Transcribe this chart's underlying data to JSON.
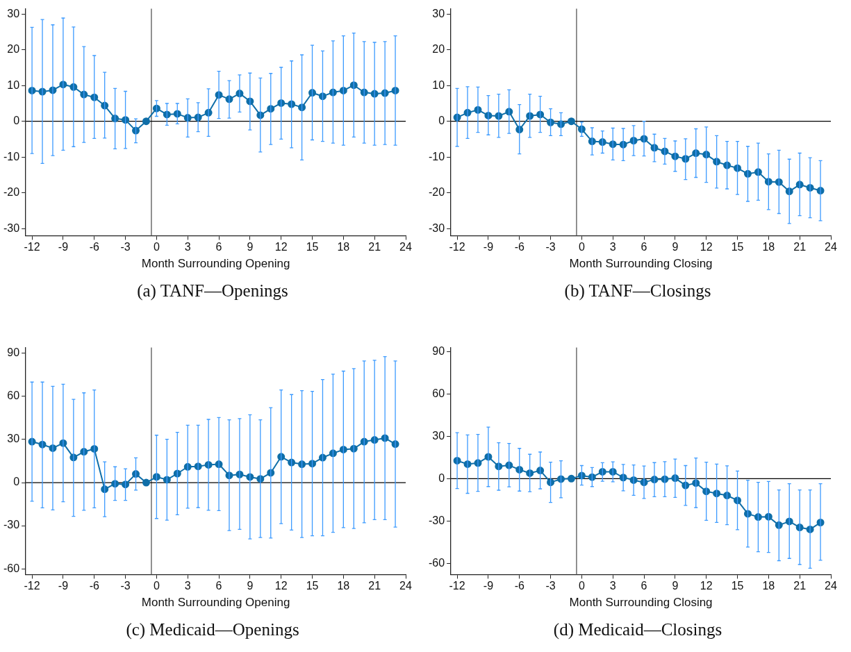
{
  "chart_data": [
    {
      "type": "line",
      "title": "(a) TANF—Openings",
      "xlabel": "Month Surrounding Opening",
      "marker": "circle",
      "x": [
        -12,
        -11,
        -10,
        -9,
        -8,
        -7,
        -6,
        -5,
        -4,
        -3,
        -2,
        -1,
        0,
        1,
        2,
        3,
        4,
        5,
        6,
        7,
        8,
        9,
        10,
        11,
        12,
        13,
        14,
        15,
        16,
        17,
        18,
        19,
        20,
        21,
        22,
        23
      ],
      "series": [
        {
          "color": "#0f6ea8",
          "values": [
            8.6,
            8.3,
            8.7,
            10.3,
            9.6,
            7.5,
            6.7,
            4.4,
            0.8,
            0.4,
            -2.6,
            0,
            3.6,
            1.9,
            2.1,
            1.0,
            1.1,
            2.4,
            7.4,
            6.2,
            7.8,
            5.6,
            1.7,
            3.5,
            5.1,
            4.8,
            3.9,
            8.0,
            7.0,
            8.1,
            8.6,
            10.1,
            8.1,
            7.7,
            7.9,
            8.6
          ],
          "errors": [
            [
              -9,
              26.3
            ],
            [
              -11.8,
              28.5
            ],
            [
              -9.6,
              27
            ],
            [
              -8.1,
              28.9
            ],
            [
              -7.1,
              26.4
            ],
            [
              -5.9,
              20.9
            ],
            [
              -4.8,
              18.4
            ],
            [
              -4.7,
              13.7
            ],
            [
              -7.7,
              9.2
            ],
            [
              -7.6,
              8.4
            ],
            [
              -6,
              0.7
            ],
            null,
            [
              1.4,
              5.8
            ],
            [
              -1.1,
              5
            ],
            [
              -0.7,
              5
            ],
            [
              -4.4,
              6.3
            ],
            [
              -2.9,
              5.2
            ],
            [
              -4.2,
              9.1
            ],
            [
              0.8,
              14
            ],
            [
              0.9,
              11.4
            ],
            [
              2.6,
              13
            ],
            [
              -2.4,
              13.5
            ],
            [
              -8.6,
              12.1
            ],
            [
              -6.5,
              13.4
            ],
            [
              -5,
              15.1
            ],
            [
              -7.4,
              16.9
            ],
            [
              -10.8,
              18.6
            ],
            [
              -5.2,
              21.3
            ],
            [
              -5.6,
              19.7
            ],
            [
              -6.1,
              22.5
            ],
            [
              -6.7,
              23.9
            ],
            [
              -4.4,
              24.7
            ],
            [
              -6.1,
              22.3
            ],
            [
              -6.7,
              22.1
            ],
            [
              -6.5,
              22.3
            ],
            [
              -6.7,
              23.9
            ]
          ]
        }
      ],
      "xlim": [
        -12.6,
        24
      ],
      "xticks": [
        -12,
        -9,
        -6,
        -3,
        0,
        3,
        6,
        9,
        12,
        15,
        18,
        21,
        24
      ],
      "ylim": [
        -32,
        31.5
      ],
      "yticks": [
        -30,
        -20,
        -10,
        0,
        10,
        20,
        30
      ],
      "ref_lines": [
        {
          "axis": "x",
          "value": -0.5,
          "color": "#555555"
        },
        {
          "axis": "y",
          "value": 0,
          "color": "#000000"
        }
      ]
    },
    {
      "type": "line",
      "title": "(b) TANF—Closings",
      "xlabel": "Month Surrounding Closing",
      "marker": "circle",
      "x": [
        -12,
        -11,
        -10,
        -9,
        -8,
        -7,
        -6,
        -5,
        -4,
        -3,
        -2,
        -1,
        0,
        1,
        2,
        3,
        4,
        5,
        6,
        7,
        8,
        9,
        10,
        11,
        12,
        13,
        14,
        15,
        16,
        17,
        18,
        19,
        20,
        21,
        22,
        23
      ],
      "series": [
        {
          "color": "#0f6ea8",
          "values": [
            1.1,
            2.4,
            3.2,
            1.6,
            1.5,
            2.7,
            -2.3,
            1.5,
            1.9,
            -0.3,
            -0.8,
            0,
            -2.2,
            -5.6,
            -5.8,
            -6.4,
            -6.5,
            -5.4,
            -4.9,
            -7.4,
            -8.4,
            -9.8,
            -10.5,
            -8.9,
            -9.3,
            -11.3,
            -12.3,
            -13.1,
            -14.7,
            -14.2,
            -16.9,
            -17,
            -19.6,
            -17.7,
            -18.6,
            -19.4
          ],
          "errors": [
            [
              -7,
              9.2
            ],
            [
              -4.8,
              9.7
            ],
            [
              -3.1,
              9.6
            ],
            [
              -3.8,
              7.2
            ],
            [
              -4.5,
              7.6
            ],
            [
              -3.4,
              8.8
            ],
            [
              -9.1,
              4.7
            ],
            [
              -4.5,
              7.6
            ],
            [
              -3.1,
              7
            ],
            [
              -4,
              3.5
            ],
            [
              -4,
              2.4
            ],
            null,
            [
              -4.2,
              -0.2
            ],
            [
              -9.4,
              -1.8
            ],
            [
              -8.9,
              -2.7
            ],
            [
              -10.8,
              -1.9
            ],
            [
              -11,
              -2
            ],
            [
              -9.6,
              -1.2
            ],
            [
              -9.7,
              0
            ],
            [
              -11.3,
              -3.6
            ],
            [
              -12,
              -4.8
            ],
            [
              -14,
              -5.5
            ],
            [
              -16.3,
              -4.9
            ],
            [
              -15.7,
              -2.1
            ],
            [
              -17.1,
              -1.6
            ],
            [
              -18.7,
              -4
            ],
            [
              -18.9,
              -5.6
            ],
            [
              -20.5,
              -5.6
            ],
            [
              -22.4,
              -7
            ],
            [
              -22.1,
              -6.1
            ],
            [
              -24.7,
              -9.1
            ],
            [
              -25.8,
              -8.1
            ],
            [
              -28.6,
              -10.6
            ],
            [
              -26.4,
              -8.9
            ],
            [
              -27,
              -10.2
            ],
            [
              -27.8,
              -11
            ]
          ]
        }
      ],
      "xlim": [
        -12.6,
        24
      ],
      "xticks": [
        -12,
        -9,
        -6,
        -3,
        0,
        3,
        6,
        9,
        12,
        15,
        18,
        21,
        24
      ],
      "ylim": [
        -32,
        31.5
      ],
      "yticks": [
        -30,
        -20,
        -10,
        0,
        10,
        20,
        30
      ],
      "ref_lines": [
        {
          "axis": "x",
          "value": -0.5,
          "color": "#555555"
        },
        {
          "axis": "y",
          "value": 0,
          "color": "#000000"
        }
      ]
    },
    {
      "type": "line",
      "title": "(c) Medicaid—Openings",
      "xlabel": "Month Surrounding Opening",
      "marker": "circle",
      "x": [
        -12,
        -11,
        -10,
        -9,
        -8,
        -7,
        -6,
        -5,
        -4,
        -3,
        -2,
        -1,
        0,
        1,
        2,
        3,
        4,
        5,
        6,
        7,
        8,
        9,
        10,
        11,
        12,
        13,
        14,
        15,
        16,
        17,
        18,
        19,
        20,
        21,
        22,
        23
      ],
      "series": [
        {
          "color": "#0f6ea8",
          "values": [
            28.5,
            26.5,
            24,
            27.5,
            17.5,
            21.5,
            23.5,
            -4.6,
            -0.8,
            -1.3,
            6,
            0,
            4,
            2,
            6.3,
            11,
            11.3,
            12.4,
            12.8,
            5,
            5.7,
            3.9,
            2.6,
            6.8,
            18,
            14,
            12.8,
            13.2,
            17.4,
            20.4,
            23,
            23.6,
            28.5,
            29.7,
            31,
            26.8
          ],
          "errors": [
            [
              -13,
              70
            ],
            [
              -17.6,
              70
            ],
            [
              -19,
              67
            ],
            [
              -13.3,
              68.5
            ],
            [
              -23.5,
              58
            ],
            [
              -19.3,
              62.5
            ],
            [
              -17.6,
              64.5
            ],
            [
              -23.7,
              14.5
            ],
            [
              -12.4,
              11
            ],
            [
              -12.4,
              9.6
            ],
            [
              -5.2,
              17.2
            ],
            null,
            [
              -25,
              33
            ],
            [
              -26.2,
              30.2
            ],
            [
              -22.4,
              35
            ],
            [
              -17.8,
              40
            ],
            [
              -17.4,
              40
            ],
            [
              -19.3,
              44
            ],
            [
              -19.5,
              45.3
            ],
            [
              -33.4,
              43.7
            ],
            [
              -32.6,
              44.6
            ],
            [
              -39.2,
              47.2
            ],
            [
              -38.2,
              43.7
            ],
            [
              -38.6,
              52.2
            ],
            [
              -28.6,
              64.5
            ],
            [
              -33,
              61.3
            ],
            [
              -38.2,
              64
            ],
            [
              -37,
              63.5
            ],
            [
              -37,
              71.7
            ],
            [
              -34.6,
              75.5
            ],
            [
              -31.4,
              77.6
            ],
            [
              -32,
              79.4
            ],
            [
              -28,
              84.7
            ],
            [
              -25.8,
              85.2
            ],
            [
              -25.8,
              87.7
            ],
            [
              -31,
              84.7
            ]
          ]
        }
      ],
      "xlim": [
        -12.6,
        24
      ],
      "xticks": [
        -12,
        -9,
        -6,
        -3,
        0,
        3,
        6,
        9,
        12,
        15,
        18,
        21,
        24
      ],
      "ylim": [
        -64,
        94
      ],
      "yticks": [
        -60,
        -30,
        0,
        30,
        60,
        90
      ],
      "ref_lines": [
        {
          "axis": "x",
          "value": -0.5,
          "color": "#555555"
        },
        {
          "axis": "y",
          "value": 0,
          "color": "#000000"
        }
      ]
    },
    {
      "type": "line",
      "title": "(d) Medicaid—Closings",
      "xlabel": "Month Surrounding Closing",
      "marker": "circle",
      "x": [
        -12,
        -11,
        -10,
        -9,
        -8,
        -7,
        -6,
        -5,
        -4,
        -3,
        -2,
        -1,
        0,
        1,
        2,
        3,
        4,
        5,
        6,
        7,
        8,
        9,
        10,
        11,
        12,
        13,
        14,
        15,
        16,
        17,
        18,
        19,
        20,
        21,
        22,
        23
      ],
      "series": [
        {
          "color": "#0f6ea8",
          "values": [
            12.8,
            10.3,
            11.1,
            15.5,
            8.7,
            9.5,
            6.4,
            3.9,
            5.8,
            -2.6,
            -0.3,
            0,
            2.2,
            1.1,
            4.9,
            4.9,
            0.8,
            -1,
            -2.6,
            -0.6,
            -0.4,
            0.4,
            -4.8,
            -3.1,
            -9,
            -10.5,
            -11.9,
            -15.4,
            -24.9,
            -27.2,
            -27,
            -33,
            -30.3,
            -34.6,
            -36,
            -31.1
          ],
          "errors": [
            [
              -7,
              32.6
            ],
            [
              -10.4,
              31
            ],
            [
              -9,
              31.4
            ],
            [
              -5.6,
              36.6
            ],
            [
              -8.2,
              25.5
            ],
            [
              -5.8,
              25
            ],
            [
              -8.8,
              21.5
            ],
            [
              -9.2,
              17.3
            ],
            [
              -7.2,
              18.9
            ],
            [
              -16.9,
              11.7
            ],
            [
              -13.5,
              12.7
            ],
            null,
            [
              -4.6,
              9.3
            ],
            [
              -5.6,
              7.9
            ],
            [
              -1.8,
              11.3
            ],
            [
              -2.2,
              11.9
            ],
            [
              -8.6,
              10.1
            ],
            [
              -11.8,
              9.7
            ],
            [
              -14,
              9
            ],
            [
              -12.8,
              11.4
            ],
            [
              -12.8,
              12.1
            ],
            [
              -13.3,
              13.9
            ],
            [
              -19,
              9.3
            ],
            [
              -20.5,
              14.7
            ],
            [
              -29.6,
              11.7
            ],
            [
              -31,
              10.3
            ],
            [
              -32.6,
              9.1
            ],
            [
              -36.2,
              5.4
            ],
            [
              -48.5,
              -1.1
            ],
            [
              -51.9,
              -2.6
            ],
            [
              -52.3,
              -2
            ],
            [
              -58.2,
              -8
            ],
            [
              -56.6,
              -3.6
            ],
            [
              -60.9,
              -8
            ],
            [
              -63.6,
              -8
            ],
            [
              -57.9,
              -3.6
            ]
          ]
        }
      ],
      "xlim": [
        -12.6,
        24
      ],
      "xticks": [
        -12,
        -9,
        -6,
        -3,
        0,
        3,
        6,
        9,
        12,
        15,
        18,
        21,
        24
      ],
      "ylim": [
        -68,
        93
      ],
      "yticks": [
        -60,
        -30,
        0,
        30,
        60,
        90
      ],
      "ref_lines": [
        {
          "axis": "x",
          "value": -0.5,
          "color": "#555555"
        },
        {
          "axis": "y",
          "value": 0,
          "color": "#000000"
        }
      ]
    }
  ]
}
